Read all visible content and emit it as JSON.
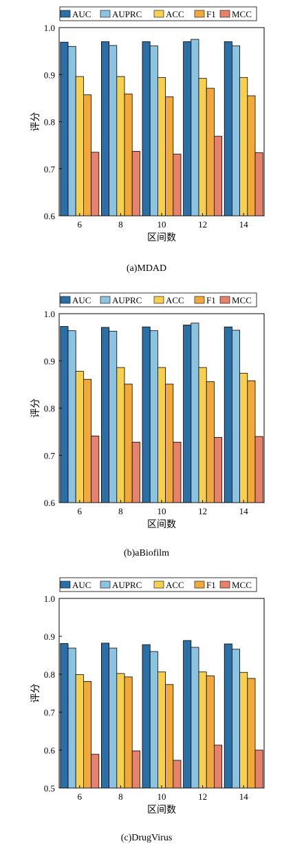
{
  "legend": [
    "AUC",
    "AUPRC",
    "ACC",
    "F1",
    "MCC"
  ],
  "colors": {
    "AUC": "#2a6fa6",
    "AUPRC": "#8cc3e0",
    "ACC": "#f7d050",
    "F1": "#f0a93a",
    "MCC": "#e6826b"
  },
  "chart_data": [
    {
      "type": "bar",
      "title": "",
      "caption": "(a)MDAD",
      "xlabel": "区间数",
      "ylabel": "评分",
      "categories": [
        "6",
        "8",
        "10",
        "12",
        "14"
      ],
      "ylim": [
        0.6,
        1.0
      ],
      "yticks": [
        "0.6",
        "0.7",
        "0.8",
        "0.9",
        "1.0"
      ],
      "legend_position": "top",
      "series": [
        {
          "name": "AUC",
          "values": [
            0.969,
            0.97,
            0.97,
            0.97,
            0.97
          ]
        },
        {
          "name": "AUPRC",
          "values": [
            0.96,
            0.962,
            0.961,
            0.975,
            0.961
          ]
        },
        {
          "name": "ACC",
          "values": [
            0.896,
            0.896,
            0.894,
            0.892,
            0.894
          ]
        },
        {
          "name": "F1",
          "values": [
            0.857,
            0.859,
            0.853,
            0.871,
            0.855
          ]
        },
        {
          "name": "MCC",
          "values": [
            0.735,
            0.737,
            0.731,
            0.769,
            0.734
          ]
        }
      ]
    },
    {
      "type": "bar",
      "title": "",
      "caption": "(b)aBiofilm",
      "xlabel": "区间数",
      "ylabel": "评分",
      "categories": [
        "6",
        "8",
        "10",
        "12",
        "14"
      ],
      "ylim": [
        0.6,
        1.0
      ],
      "yticks": [
        "0.6",
        "0.7",
        "0.8",
        "0.9",
        "1.0"
      ],
      "legend_position": "top",
      "series": [
        {
          "name": "AUC",
          "values": [
            0.973,
            0.971,
            0.972,
            0.976,
            0.972
          ]
        },
        {
          "name": "AUPRC",
          "values": [
            0.964,
            0.963,
            0.964,
            0.98,
            0.965
          ]
        },
        {
          "name": "ACC",
          "values": [
            0.878,
            0.886,
            0.886,
            0.886,
            0.874
          ]
        },
        {
          "name": "F1",
          "values": [
            0.861,
            0.851,
            0.851,
            0.856,
            0.858
          ]
        },
        {
          "name": "MCC",
          "values": [
            0.741,
            0.728,
            0.728,
            0.738,
            0.74
          ]
        }
      ]
    },
    {
      "type": "bar",
      "title": "",
      "caption": "(c)DrugVirus",
      "xlabel": "区间数",
      "ylabel": "评分",
      "categories": [
        "6",
        "8",
        "10",
        "12",
        "14"
      ],
      "ylim": [
        0.5,
        1.0
      ],
      "yticks": [
        "0.5",
        "0.6",
        "0.7",
        "0.8",
        "0.9",
        "1.0"
      ],
      "legend_position": "top",
      "series": [
        {
          "name": "AUC",
          "values": [
            0.881,
            0.882,
            0.878,
            0.889,
            0.88
          ]
        },
        {
          "name": "AUPRC",
          "values": [
            0.869,
            0.869,
            0.86,
            0.871,
            0.866
          ]
        },
        {
          "name": "ACC",
          "values": [
            0.799,
            0.802,
            0.806,
            0.806,
            0.805
          ]
        },
        {
          "name": "F1",
          "values": [
            0.781,
            0.793,
            0.773,
            0.796,
            0.789
          ]
        },
        {
          "name": "MCC",
          "values": [
            0.589,
            0.598,
            0.573,
            0.613,
            0.6
          ]
        }
      ]
    }
  ]
}
